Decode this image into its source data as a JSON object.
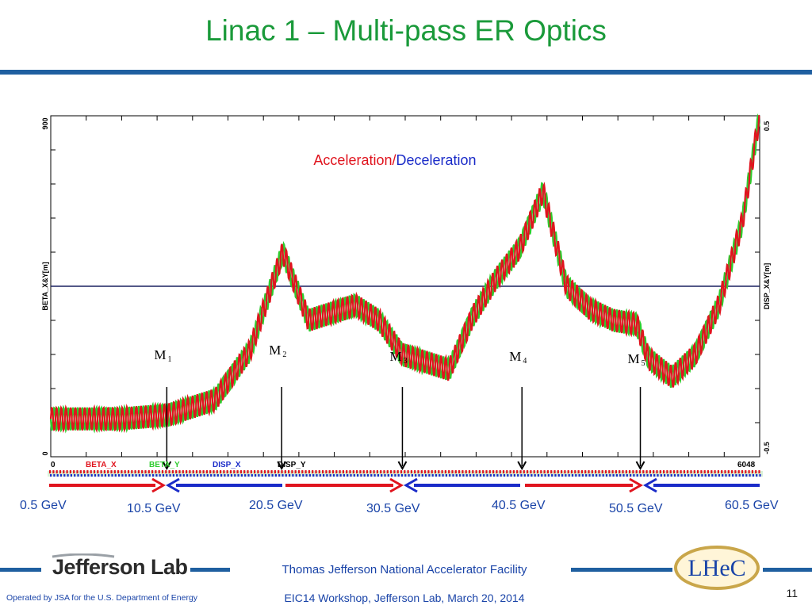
{
  "slide": {
    "title": "Linac 1  – Multi-pass ER Optics",
    "page_number": "11",
    "facility": "Thomas Jefferson National Accelerator Facility",
    "operated_by": "Operated by JSA for the U.S. Department of Energy",
    "workshop": "EIC14 Workshop, Jefferson Lab, March 20, 2014",
    "logo_left": "Jefferson Lab",
    "logo_right": "LHeC"
  },
  "colors": {
    "title": "#1a9a3a",
    "beta_x": "#e0141e",
    "beta_y": "#2ecc2e",
    "disp_x": "#1a2bc8",
    "disp_y": "#000000",
    "accel_arrow": "#e0141e",
    "decel_arrow": "#1a2bc8"
  },
  "chart_data": {
    "type": "line",
    "annotation": {
      "accel": "Acceleration",
      "sep": "/",
      "decel": "Deceleration"
    },
    "y_left": {
      "label": "BETA_X&Y[m]",
      "min_label": "0",
      "max_label": "900",
      "range": [
        0,
        900
      ]
    },
    "y_right": {
      "label": "DISP_X&Y[m]",
      "min_label": "-0.5",
      "max_label": "0.5",
      "range": [
        -0.5,
        0.5
      ]
    },
    "x": {
      "range": [
        0,
        6048
      ],
      "min_label": "0",
      "max_label": "6048"
    },
    "legend": [
      "BETA_X",
      "BETA_Y",
      "DISP_X",
      "DISP_Y"
    ],
    "dispersion_level": 0,
    "envelope": {
      "x": [
        0,
        600,
        1000,
        1400,
        1700,
        1980,
        2200,
        2600,
        2800,
        3000,
        3200,
        3400,
        3600,
        3800,
        4000,
        4200,
        4400,
        4600,
        4800,
        5000,
        5100,
        5300,
        5500,
        5700,
        5900,
        6048
      ],
      "y": [
        100,
        100,
        110,
        150,
        280,
        540,
        360,
        400,
        360,
        270,
        250,
        230,
        370,
        470,
        550,
        700,
        450,
        390,
        360,
        350,
        260,
        210,
        270,
        400,
        620,
        900
      ]
    },
    "oscillation_amplitude": 30,
    "markers": [
      {
        "label": "M",
        "sub": "1",
        "x": 990
      },
      {
        "label": "M",
        "sub": "2",
        "x": 1970
      },
      {
        "label": "M",
        "sub": "3",
        "x": 3000
      },
      {
        "label": "M",
        "sub": "4",
        "x": 4020
      },
      {
        "label": "M",
        "sub": "5",
        "x": 5030
      }
    ],
    "energy_labels": [
      "0.5 GeV",
      "10.5 GeV",
      "20.5 GeV",
      "30.5 GeV",
      "40.5 GeV",
      "50.5 GeV",
      "60.5 GeV"
    ],
    "pass_arrows": [
      "accel",
      "decel",
      "accel",
      "decel",
      "accel",
      "decel"
    ]
  }
}
